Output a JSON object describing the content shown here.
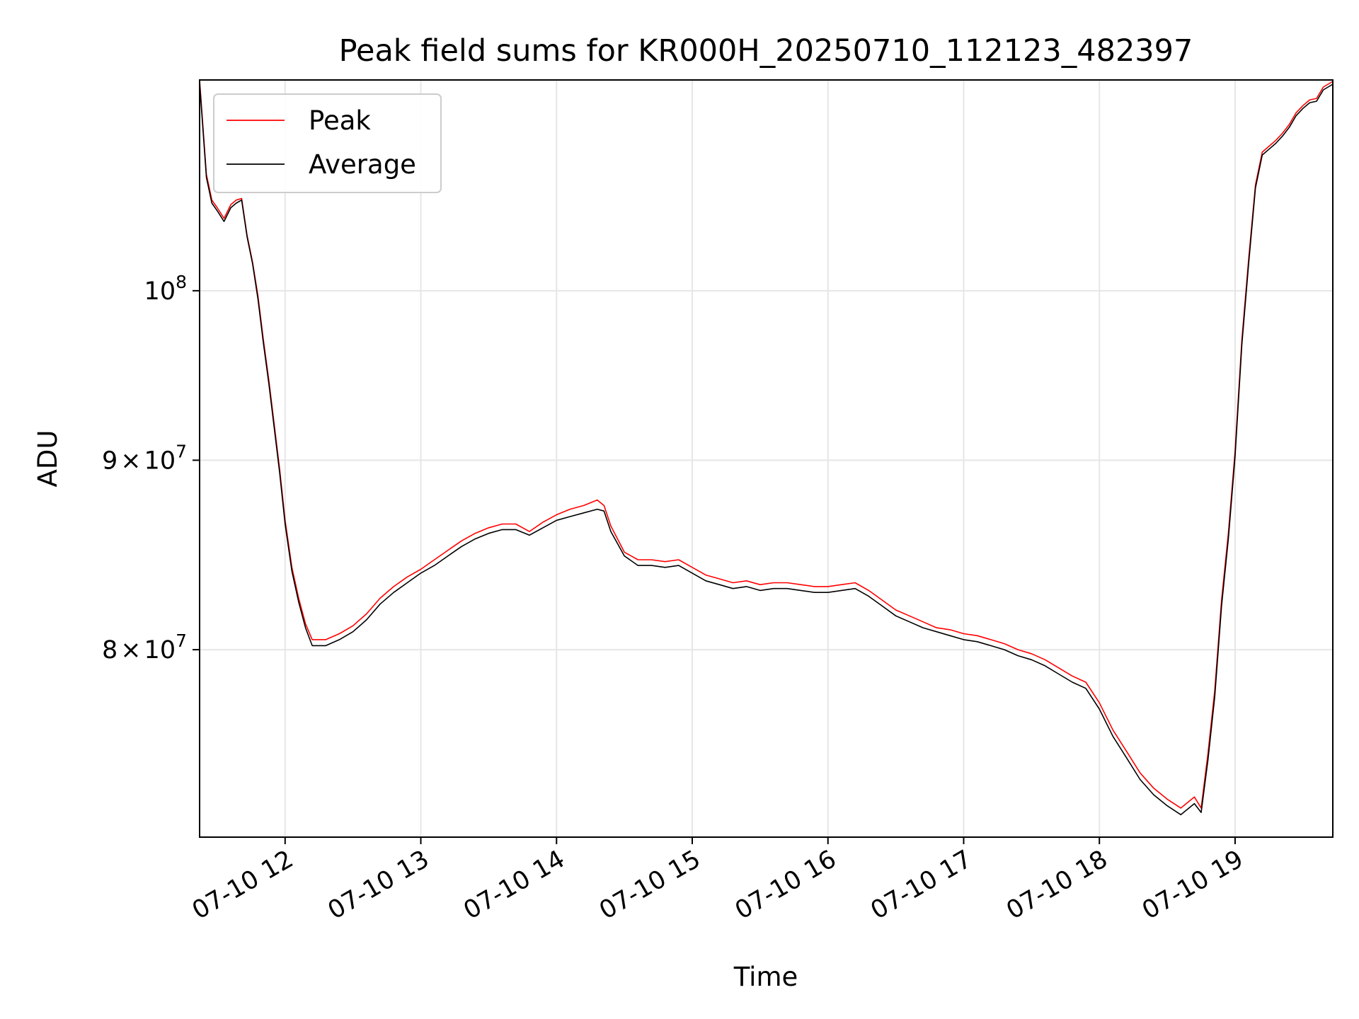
{
  "chart_data": {
    "type": "line",
    "title": "Peak field sums for KR000H_20250710_112123_482397",
    "xlabel": "Time",
    "ylabel": "ADU",
    "x_unit": "hour of 2025-07-10",
    "xlim": [
      11.37,
      19.72
    ],
    "ylim": [
      71200000,
      114000000
    ],
    "y_scale": "log",
    "grid": true,
    "legend_position": "upper-left",
    "x_ticks": [
      {
        "value": 12,
        "label": "07-10 12"
      },
      {
        "value": 13,
        "label": "07-10 13"
      },
      {
        "value": 14,
        "label": "07-10 14"
      },
      {
        "value": 15,
        "label": "07-10 15"
      },
      {
        "value": 16,
        "label": "07-10 16"
      },
      {
        "value": 17,
        "label": "07-10 17"
      },
      {
        "value": 18,
        "label": "07-10 18"
      },
      {
        "value": 19,
        "label": "07-10 19"
      }
    ],
    "y_ticks": [
      {
        "value": 80000000,
        "mantissa": "8",
        "base": "10",
        "exp": "7"
      },
      {
        "value": 90000000,
        "mantissa": "9",
        "base": "10",
        "exp": "7"
      },
      {
        "value": 100000000,
        "mantissa": "",
        "base": "10",
        "exp": "8"
      }
    ],
    "x": [
      11.37,
      11.42,
      11.46,
      11.5,
      11.55,
      11.6,
      11.64,
      11.68,
      11.72,
      11.76,
      11.8,
      11.84,
      11.88,
      11.92,
      11.96,
      12.0,
      12.05,
      12.1,
      12.15,
      12.2,
      12.3,
      12.4,
      12.5,
      12.6,
      12.7,
      12.8,
      12.9,
      13.0,
      13.1,
      13.2,
      13.3,
      13.4,
      13.5,
      13.6,
      13.7,
      13.8,
      13.9,
      14.0,
      14.1,
      14.2,
      14.3,
      14.35,
      14.4,
      14.5,
      14.6,
      14.7,
      14.8,
      14.9,
      15.0,
      15.1,
      15.2,
      15.3,
      15.4,
      15.5,
      15.6,
      15.7,
      15.8,
      15.9,
      16.0,
      16.1,
      16.2,
      16.3,
      16.4,
      16.5,
      16.6,
      16.7,
      16.8,
      16.9,
      17.0,
      17.1,
      17.2,
      17.3,
      17.4,
      17.5,
      17.6,
      17.7,
      17.8,
      17.9,
      18.0,
      18.1,
      18.2,
      18.3,
      18.4,
      18.5,
      18.6,
      18.7,
      18.75,
      18.8,
      18.85,
      18.9,
      18.95,
      19.0,
      19.05,
      19.1,
      19.15,
      19.2,
      19.25,
      19.3,
      19.35,
      19.4,
      19.45,
      19.5,
      19.55,
      19.6,
      19.65,
      19.72
    ],
    "series": [
      {
        "name": "Peak",
        "color": "#ff0000",
        "values": [
          114000000,
          107500000,
          105800000,
          105300000,
          104600000,
          105500000,
          105800000,
          105900000,
          103500000,
          101800000,
          99700000,
          97000000,
          94600000,
          92000000,
          89500000,
          86700000,
          84200000,
          82600000,
          81300000,
          80500000,
          80500000,
          80800000,
          81200000,
          81800000,
          82600000,
          83200000,
          83700000,
          84100000,
          84600000,
          85100000,
          85600000,
          86000000,
          86300000,
          86500000,
          86500000,
          86100000,
          86600000,
          87000000,
          87300000,
          87500000,
          87800000,
          87500000,
          86400000,
          85000000,
          84600000,
          84600000,
          84500000,
          84600000,
          84200000,
          83800000,
          83600000,
          83400000,
          83500000,
          83300000,
          83400000,
          83400000,
          83300000,
          83200000,
          83200000,
          83300000,
          83400000,
          83000000,
          82500000,
          82000000,
          81700000,
          81400000,
          81100000,
          81000000,
          80800000,
          80700000,
          80500000,
          80300000,
          80000000,
          79800000,
          79500000,
          79100000,
          78700000,
          78400000,
          77400000,
          76100000,
          75100000,
          74100000,
          73400000,
          72900000,
          72500000,
          73000000,
          72500000,
          75000000,
          78000000,
          82500000,
          86000000,
          90500000,
          97000000,
          102000000,
          106800000,
          109000000,
          109400000,
          109800000,
          110300000,
          110900000,
          111700000,
          112200000,
          112600000,
          112700000,
          113500000,
          113900000
        ]
      },
      {
        "name": "Average",
        "color": "#000000",
        "values": [
          113800000,
          107300000,
          105600000,
          105100000,
          104400000,
          105300000,
          105600000,
          105800000,
          103400000,
          101700000,
          99500000,
          96800000,
          94400000,
          91800000,
          89300000,
          86500000,
          84000000,
          82400000,
          81100000,
          80200000,
          80200000,
          80500000,
          80900000,
          81500000,
          82300000,
          82900000,
          83400000,
          83900000,
          84300000,
          84800000,
          85300000,
          85700000,
          86000000,
          86200000,
          86200000,
          85900000,
          86300000,
          86700000,
          86900000,
          87100000,
          87300000,
          87200000,
          86100000,
          84800000,
          84300000,
          84300000,
          84200000,
          84300000,
          83900000,
          83500000,
          83300000,
          83100000,
          83200000,
          83000000,
          83100000,
          83100000,
          83000000,
          82900000,
          82900000,
          83000000,
          83100000,
          82700000,
          82200000,
          81700000,
          81400000,
          81100000,
          80900000,
          80700000,
          80500000,
          80400000,
          80200000,
          80000000,
          79700000,
          79500000,
          79200000,
          78800000,
          78400000,
          78100000,
          77100000,
          75800000,
          74800000,
          73800000,
          73100000,
          72600000,
          72200000,
          72700000,
          72300000,
          74700000,
          77700000,
          82200000,
          85700000,
          90200000,
          96700000,
          101700000,
          106600000,
          108800000,
          109200000,
          109600000,
          110100000,
          110700000,
          111500000,
          112000000,
          112400000,
          112500000,
          113300000,
          113700000
        ]
      }
    ]
  }
}
